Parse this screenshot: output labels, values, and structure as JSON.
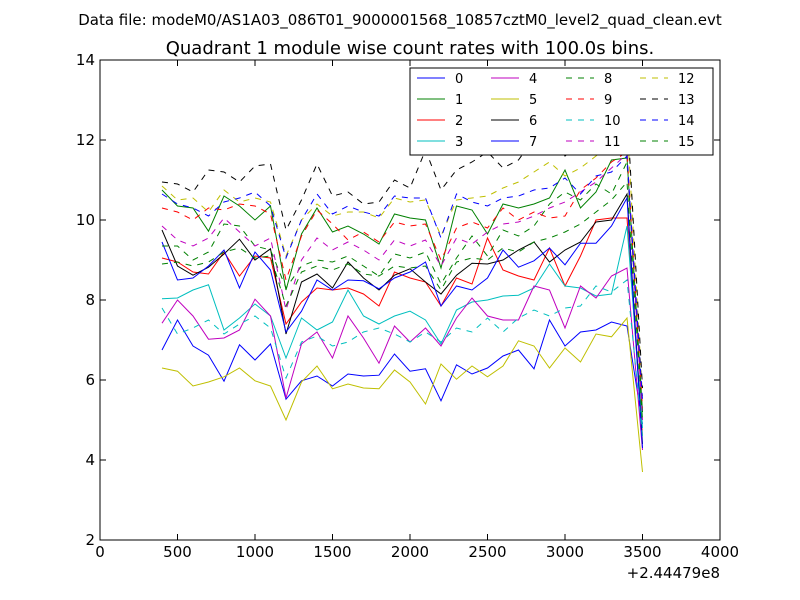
{
  "chart_data": {
    "type": "line",
    "suptitle": "Data file: modeM0/AS1A03_086T01_9000001568_10857cztM0_level2_quad_clean.evt",
    "title": "Quadrant 1 module wise count rates with 100.0s bins.",
    "xlabel": "",
    "ylabel": "",
    "offset_text": "+2.44479e8",
    "xlim": [
      0,
      4000
    ],
    "ylim": [
      2,
      14
    ],
    "xticks": [
      0,
      500,
      1000,
      1500,
      2000,
      2500,
      3000,
      3500,
      4000
    ],
    "yticks": [
      2,
      4,
      6,
      8,
      10,
      12,
      14
    ],
    "grid": false,
    "legend_position": "top-right",
    "legend_columns": 4,
    "x": [
      400,
      500,
      600,
      700,
      800,
      900,
      1000,
      1100,
      1200,
      1300,
      1400,
      1500,
      1600,
      1700,
      1800,
      1900,
      2000,
      2100,
      2200,
      2300,
      2400,
      2500,
      2600,
      2700,
      2800,
      2900,
      3000,
      3100,
      3200,
      3300,
      3400,
      3500
    ],
    "series": [
      {
        "name": "0",
        "color": "#0000ff",
        "dash": "solid",
        "values": [
          6.75,
          7.5,
          6.85,
          6.62,
          5.97,
          6.88,
          6.5,
          6.9,
          5.52,
          5.98,
          6.1,
          5.85,
          6.15,
          6.1,
          6.12,
          6.65,
          6.22,
          6.28,
          5.48,
          6.38,
          6.15,
          6.3,
          6.6,
          6.75,
          6.28,
          7.5,
          6.85,
          7.2,
          7.25,
          7.45,
          7.35,
          4.9
        ]
      },
      {
        "name": "1",
        "color": "#008000",
        "dash": "solid",
        "values": [
          10.75,
          10.35,
          10.3,
          9.72,
          10.6,
          10.35,
          10.0,
          10.35,
          8.25,
          9.65,
          10.3,
          9.7,
          9.85,
          9.65,
          9.4,
          10.15,
          10.05,
          10.0,
          8.8,
          10.35,
          10.25,
          9.65,
          10.4,
          10.3,
          10.4,
          10.55,
          11.25,
          10.3,
          10.7,
          11.5,
          11.55,
          5.2
        ]
      },
      {
        "name": "2",
        "color": "#ff0000",
        "dash": "solid",
        "values": [
          9.05,
          8.95,
          8.7,
          8.65,
          9.2,
          8.6,
          9.1,
          9.05,
          7.4,
          7.95,
          8.3,
          8.25,
          8.3,
          8.15,
          7.85,
          8.7,
          8.55,
          8.45,
          7.85,
          8.55,
          8.4,
          9.55,
          8.75,
          8.6,
          8.5,
          9.3,
          8.35,
          9.1,
          10.0,
          10.05,
          10.05,
          4.6
        ]
      },
      {
        "name": "3",
        "color": "#00bfbf",
        "dash": "solid",
        "values": [
          8.03,
          8.05,
          8.25,
          8.38,
          7.25,
          7.55,
          7.9,
          7.6,
          6.55,
          7.55,
          7.25,
          7.45,
          8.25,
          7.6,
          7.4,
          7.6,
          7.72,
          7.5,
          6.9,
          7.75,
          7.95,
          8.0,
          8.1,
          8.12,
          8.3,
          8.9,
          8.35,
          8.3,
          8.1,
          8.15,
          9.85,
          4.8
        ]
      },
      {
        "name": "4",
        "color": "#bf00bf",
        "dash": "solid",
        "values": [
          7.42,
          8.0,
          7.6,
          7.02,
          7.05,
          7.25,
          8.02,
          7.6,
          5.55,
          6.9,
          7.2,
          6.55,
          7.6,
          7.05,
          6.42,
          7.35,
          6.95,
          7.3,
          6.85,
          7.55,
          8.05,
          7.6,
          7.5,
          7.5,
          8.35,
          8.25,
          7.3,
          8.35,
          8.05,
          8.6,
          8.8,
          4.25
        ]
      },
      {
        "name": "5",
        "color": "#bfbf00",
        "dash": "solid",
        "values": [
          6.3,
          6.22,
          5.85,
          5.95,
          6.08,
          6.3,
          5.98,
          5.85,
          5.0,
          5.95,
          6.35,
          5.78,
          5.9,
          5.8,
          5.78,
          6.25,
          5.95,
          5.4,
          6.4,
          6.02,
          6.35,
          6.08,
          6.35,
          6.98,
          6.85,
          6.3,
          6.8,
          6.45,
          7.15,
          7.08,
          7.55,
          3.7
        ]
      },
      {
        "name": "6",
        "color": "#000000",
        "dash": "solid",
        "values": [
          9.75,
          8.85,
          8.62,
          8.82,
          9.15,
          9.52,
          9.0,
          9.28,
          7.15,
          8.45,
          8.65,
          8.3,
          8.95,
          8.55,
          8.25,
          8.62,
          8.78,
          8.45,
          8.15,
          8.62,
          8.92,
          8.9,
          9.0,
          9.25,
          9.45,
          8.95,
          9.25,
          9.45,
          9.95,
          10.0,
          10.65,
          4.4
        ]
      },
      {
        "name": "7",
        "color": "#0000ff",
        "dash": "solid",
        "values": [
          9.45,
          8.5,
          8.55,
          8.85,
          9.25,
          8.3,
          9.2,
          8.75,
          7.2,
          7.72,
          8.5,
          8.25,
          8.5,
          8.48,
          8.28,
          8.55,
          8.7,
          8.95,
          7.85,
          8.35,
          8.25,
          8.55,
          9.25,
          8.82,
          8.98,
          9.3,
          8.88,
          9.42,
          9.42,
          9.85,
          10.55,
          4.3
        ]
      },
      {
        "name": "8",
        "color": "#008000",
        "dash": "dashed",
        "values": [
          9.35,
          9.35,
          9.0,
          9.2,
          9.9,
          9.85,
          9.35,
          9.25,
          8.3,
          8.85,
          9.0,
          8.95,
          9.1,
          8.85,
          8.6,
          9.15,
          9.05,
          9.2,
          8.4,
          9.05,
          9.6,
          9.1,
          9.75,
          9.6,
          9.85,
          10.4,
          10.7,
          10.5,
          10.9,
          10.65,
          11.45,
          5.2
        ]
      },
      {
        "name": "9",
        "color": "#ff0000",
        "dash": "dashed",
        "values": [
          10.3,
          10.2,
          10.0,
          10.3,
          10.25,
          10.4,
          10.35,
          10.15,
          8.5,
          9.6,
          10.25,
          9.9,
          9.5,
          9.7,
          9.45,
          9.95,
          9.85,
          9.9,
          9.0,
          9.8,
          9.95,
          9.8,
          10.3,
          10.0,
          10.2,
          10.05,
          10.1,
          10.75,
          11.05,
          11.45,
          11.7,
          5.3
        ]
      },
      {
        "name": "10",
        "color": "#00bfbf",
        "dash": "dashed",
        "values": [
          7.8,
          7.15,
          7.3,
          7.5,
          7.15,
          7.4,
          7.6,
          7.3,
          6.05,
          6.95,
          7.1,
          6.85,
          6.95,
          7.2,
          7.3,
          7.15,
          6.95,
          7.2,
          6.95,
          7.3,
          7.2,
          7.55,
          7.2,
          7.55,
          7.75,
          7.6,
          7.8,
          7.85,
          8.35,
          8.2,
          8.5,
          4.6
        ]
      },
      {
        "name": "11",
        "color": "#bf00bf",
        "dash": "dashed",
        "values": [
          9.85,
          9.5,
          9.35,
          9.55,
          10.05,
          9.7,
          9.35,
          9.55,
          7.75,
          9.0,
          9.55,
          9.25,
          9.45,
          9.25,
          9.0,
          9.5,
          9.35,
          9.5,
          8.85,
          9.55,
          9.4,
          9.7,
          9.9,
          9.95,
          10.1,
          10.3,
          10.45,
          10.7,
          10.95,
          11.3,
          11.65,
          5.0
        ]
      },
      {
        "name": "12",
        "color": "#bfbf00",
        "dash": "dashed",
        "values": [
          10.85,
          10.5,
          10.55,
          10.2,
          10.75,
          10.45,
          10.55,
          10.45,
          9.1,
          10.0,
          10.4,
          10.1,
          10.2,
          10.2,
          10.05,
          10.55,
          10.45,
          10.5,
          9.6,
          10.5,
          10.55,
          10.6,
          10.8,
          10.95,
          11.2,
          11.45,
          11.1,
          11.3,
          11.6,
          11.9,
          12.45,
          5.6
        ]
      },
      {
        "name": "13",
        "color": "#000000",
        "dash": "dashed",
        "values": [
          10.95,
          10.9,
          10.7,
          11.25,
          11.2,
          10.95,
          11.35,
          11.4,
          9.75,
          10.5,
          11.4,
          10.6,
          10.7,
          10.4,
          10.45,
          11.0,
          10.8,
          11.75,
          10.75,
          11.25,
          11.45,
          11.7,
          11.3,
          11.5,
          12.05,
          12.2,
          11.6,
          11.9,
          12.3,
          12.75,
          12.8,
          5.8
        ]
      },
      {
        "name": "14",
        "color": "#0000ff",
        "dash": "dashed",
        "values": [
          10.65,
          10.4,
          10.3,
          10.1,
          10.45,
          10.55,
          10.7,
          10.35,
          9.05,
          10.0,
          10.65,
          10.15,
          10.35,
          10.2,
          10.1,
          10.6,
          10.55,
          10.55,
          9.55,
          10.65,
          10.45,
          10.35,
          10.55,
          10.6,
          10.75,
          10.8,
          11.05,
          10.65,
          11.1,
          11.2,
          11.6,
          5.5
        ]
      },
      {
        "name": "15",
        "color": "#008000",
        "dash": "dashed",
        "values": [
          8.9,
          8.95,
          8.85,
          8.95,
          9.2,
          9.3,
          9.05,
          9.1,
          7.85,
          8.7,
          8.85,
          8.75,
          8.9,
          8.65,
          8.6,
          8.85,
          8.8,
          8.85,
          8.25,
          8.95,
          9.05,
          9.0,
          9.3,
          9.2,
          9.45,
          9.55,
          9.7,
          9.9,
          10.2,
          10.5,
          10.95,
          5.0
        ]
      }
    ]
  }
}
